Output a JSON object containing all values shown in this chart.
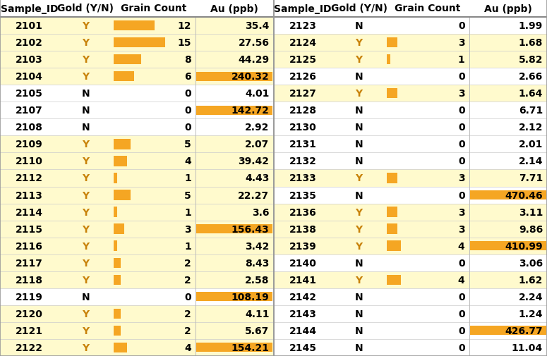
{
  "left_table": {
    "sample_ids": [
      2101,
      2102,
      2103,
      2104,
      2105,
      2107,
      2108,
      2109,
      2110,
      2112,
      2113,
      2114,
      2115,
      2116,
      2117,
      2118,
      2119,
      2120,
      2121,
      2122
    ],
    "gold": [
      "Y",
      "Y",
      "Y",
      "Y",
      "N",
      "N",
      "N",
      "Y",
      "Y",
      "Y",
      "Y",
      "Y",
      "Y",
      "Y",
      "Y",
      "Y",
      "N",
      "Y",
      "Y",
      "Y"
    ],
    "grain_count": [
      12,
      15,
      8,
      6,
      0,
      0,
      0,
      5,
      4,
      1,
      5,
      1,
      3,
      1,
      2,
      2,
      0,
      2,
      2,
      4
    ],
    "au_ppb": [
      35.4,
      27.56,
      44.29,
      240.32,
      4.01,
      142.72,
      2.92,
      2.07,
      39.42,
      4.43,
      22.27,
      3.6,
      156.43,
      3.42,
      8.43,
      2.58,
      108.19,
      4.11,
      5.67,
      154.21
    ]
  },
  "right_table": {
    "sample_ids": [
      2123,
      2124,
      2125,
      2126,
      2127,
      2128,
      2130,
      2131,
      2132,
      2133,
      2135,
      2136,
      2138,
      2139,
      2140,
      2141,
      2142,
      2143,
      2144,
      2145
    ],
    "gold": [
      "N",
      "Y",
      "Y",
      "N",
      "Y",
      "N",
      "N",
      "N",
      "N",
      "Y",
      "N",
      "Y",
      "Y",
      "Y",
      "N",
      "Y",
      "N",
      "N",
      "N",
      "N"
    ],
    "grain_count": [
      0,
      3,
      1,
      0,
      3,
      0,
      0,
      0,
      0,
      3,
      0,
      3,
      3,
      4,
      0,
      4,
      0,
      0,
      0,
      0
    ],
    "au_ppb": [
      1.99,
      1.68,
      5.82,
      2.66,
      1.64,
      6.71,
      2.12,
      2.01,
      2.14,
      7.71,
      470.46,
      3.11,
      9.86,
      410.99,
      3.06,
      1.62,
      2.24,
      1.24,
      426.77,
      11.04
    ]
  },
  "col_headers": [
    "Sample_ID",
    "Gold (Y/N)",
    "Grain Count",
    "Au (ppb)"
  ],
  "au_threshold": 100,
  "max_grain": 15,
  "fig_width": 7.75,
  "fig_height": 5.06,
  "dpi": 100,
  "yellow_bg": "#FFFACD",
  "white_bg": "#FFFFFF",
  "orange_bar": "#F5A623",
  "au_highlight": "#F5A623",
  "gold_y_color": "#C8820A",
  "gold_n_color": "#000000",
  "border_color": "#999999",
  "row_line_color": "#CCCCCC",
  "header_line_color": "#888888"
}
